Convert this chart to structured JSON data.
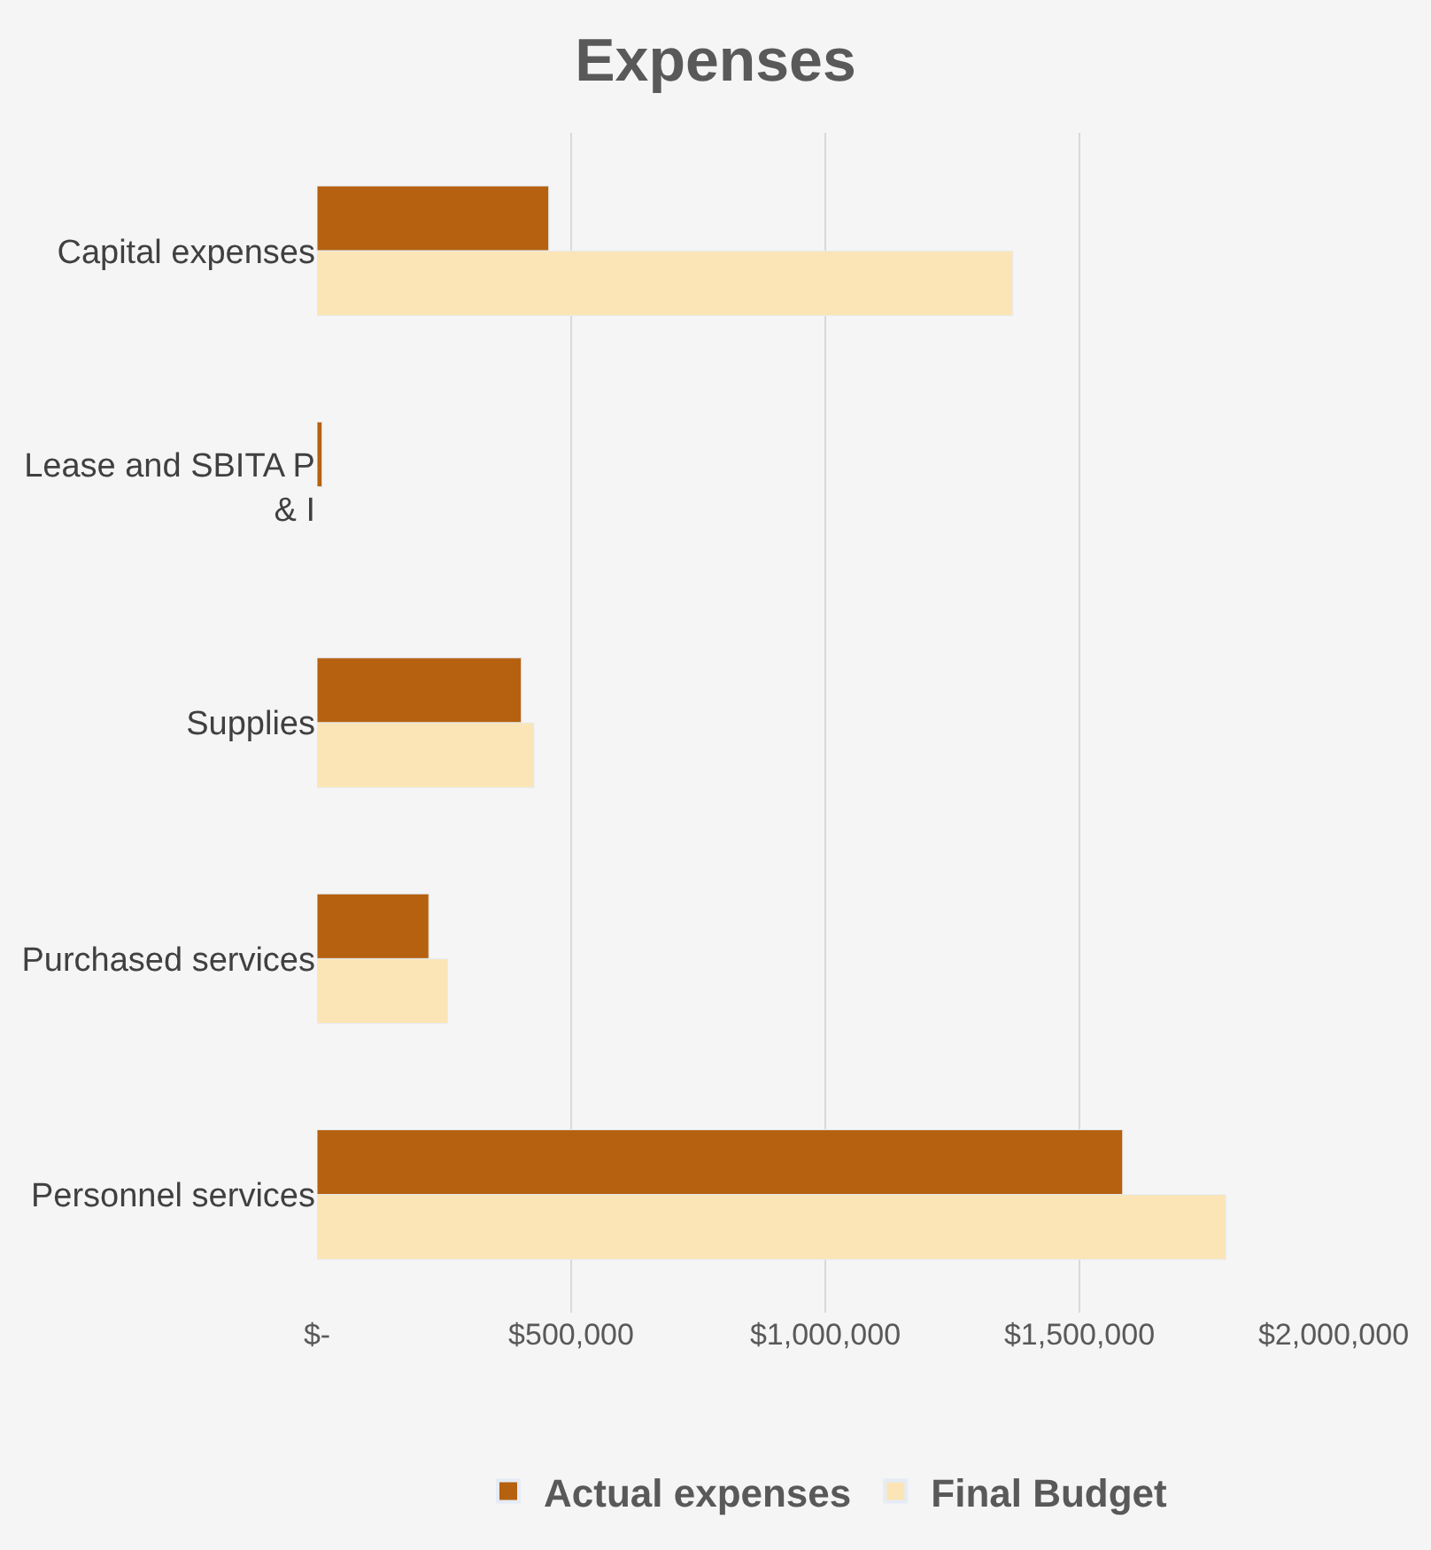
{
  "chart_data": {
    "type": "bar",
    "orientation": "horizontal",
    "title": "Expenses",
    "categories": [
      "Capital expenses",
      "Lease and SBITA P & I",
      "Supplies",
      "Purchased services",
      "Personnel services"
    ],
    "series": [
      {
        "name": "Actual expenses",
        "color": "#b5610f",
        "values": [
          456000,
          10000,
          402000,
          220000,
          1585000
        ]
      },
      {
        "name": "Final Budget",
        "color": "#fbe5b6",
        "values": [
          1369000,
          null,
          427000,
          257000,
          1788000
        ]
      }
    ],
    "xlim": [
      0,
      2000000
    ],
    "xticks": [
      {
        "value": 0,
        "label": "$-"
      },
      {
        "value": 500000,
        "label": "$500,000"
      },
      {
        "value": 1000000,
        "label": "$1,000,000"
      },
      {
        "value": 1500000,
        "label": "$1,500,000"
      },
      {
        "value": 2000000,
        "label": "$2,000,000"
      }
    ],
    "grid": "x",
    "legend": "bottom"
  }
}
